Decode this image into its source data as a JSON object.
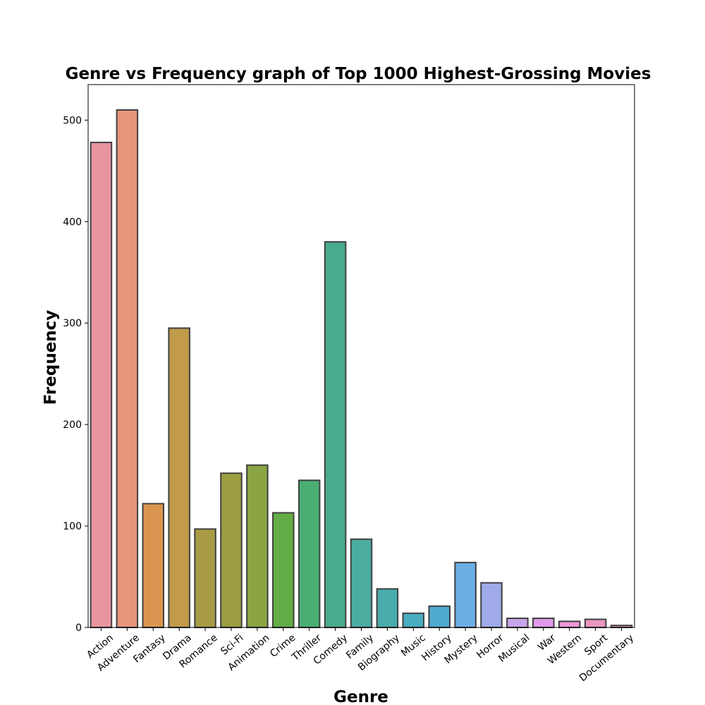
{
  "chart_data": {
    "type": "bar",
    "title": "Genre vs Frequency graph of Top 1000 Highest-Grossing Movies",
    "xlabel": "Genre",
    "ylabel": "Frequency",
    "ylim": [
      0,
      535
    ],
    "yticks": [
      0,
      100,
      200,
      300,
      400,
      500
    ],
    "grid": false,
    "categories": [
      "Action",
      "Adventure",
      "Fantasy",
      "Drama",
      "Romance",
      "Sci-Fi",
      "Animation",
      "Crime",
      "Thriller",
      "Comedy",
      "Family",
      "Biography",
      "Music",
      "History",
      "Mystery",
      "Horror",
      "Musical",
      "War",
      "Western",
      "Sport",
      "Documentary"
    ],
    "values": [
      478,
      510,
      122,
      295,
      97,
      152,
      160,
      113,
      145,
      380,
      87,
      38,
      14,
      21,
      64,
      44,
      9,
      9,
      6,
      8,
      2
    ],
    "colors": [
      "#e8959f",
      "#e6947c",
      "#db9550",
      "#c19a4a",
      "#a89b45",
      "#9b9e41",
      "#8ba544",
      "#62ad46",
      "#4aae73",
      "#48ab8d",
      "#4aada0",
      "#4aadac",
      "#4aacbf",
      "#4fabd0",
      "#6aaee6",
      "#a0aae8",
      "#c7a5ea",
      "#e09aeb",
      "#ef97da",
      "#ea96c1",
      "#e8979f"
    ]
  }
}
